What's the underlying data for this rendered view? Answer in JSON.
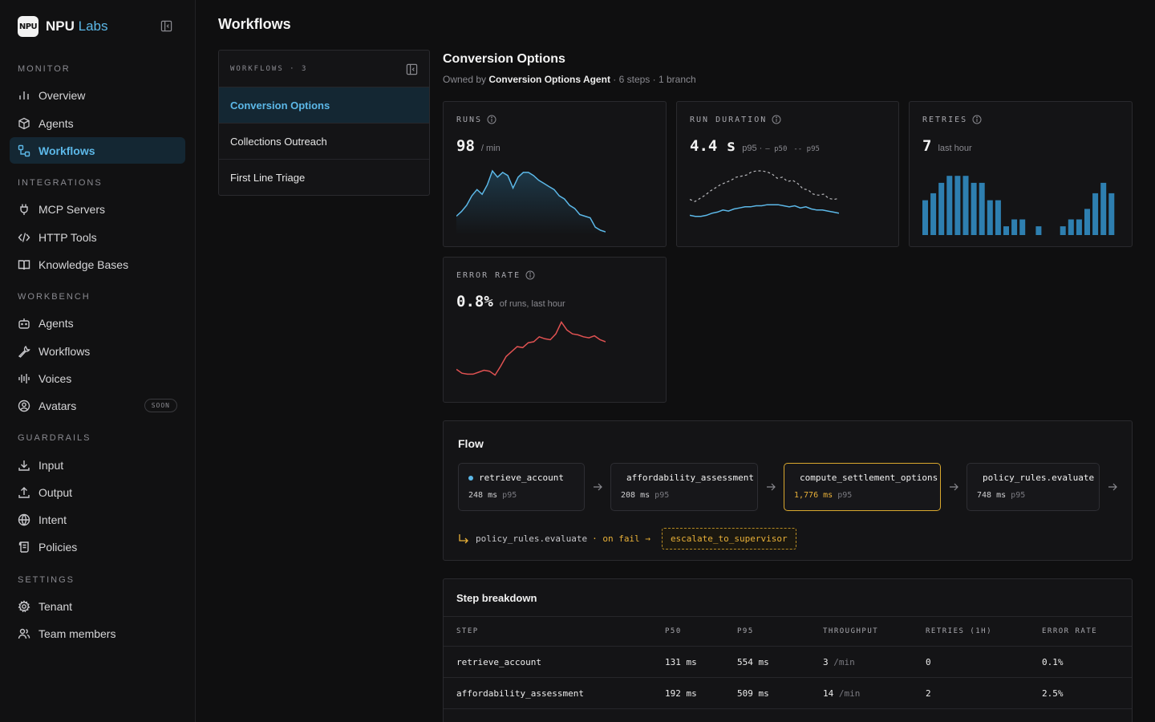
{
  "brand": {
    "logo_text": "NPU",
    "name": "NPU",
    "name_accent": "Labs"
  },
  "nav": {
    "monitor_label": "MONITOR",
    "monitor": [
      {
        "label": "Overview",
        "icon": "bar-chart-icon"
      },
      {
        "label": "Agents",
        "icon": "cube-icon"
      },
      {
        "label": "Workflows",
        "icon": "workflow-icon",
        "active": true
      }
    ],
    "integrations_label": "INTEGRATIONS",
    "integrations": [
      {
        "label": "MCP Servers",
        "icon": "plug-icon"
      },
      {
        "label": "HTTP Tools",
        "icon": "code-icon"
      },
      {
        "label": "Knowledge Bases",
        "icon": "book-icon"
      }
    ],
    "workbench_label": "WORKBENCH",
    "workbench": [
      {
        "label": "Agents",
        "icon": "robot-icon"
      },
      {
        "label": "Workflows",
        "icon": "wrench-icon"
      },
      {
        "label": "Voices",
        "icon": "waveform-icon"
      },
      {
        "label": "Avatars",
        "icon": "user-circle-icon",
        "badge": "SOON"
      }
    ],
    "guardrails_label": "GUARDRAILS",
    "guardrails": [
      {
        "label": "Input",
        "icon": "download-icon"
      },
      {
        "label": "Output",
        "icon": "upload-icon"
      },
      {
        "label": "Intent",
        "icon": "globe-icon"
      },
      {
        "label": "Policies",
        "icon": "scroll-icon"
      }
    ],
    "settings_label": "SETTINGS",
    "settings": [
      {
        "label": "Tenant",
        "icon": "gear-icon"
      },
      {
        "label": "Team members",
        "icon": "users-icon"
      }
    ]
  },
  "page": {
    "title": "Workflows"
  },
  "workflows": {
    "header": "WORKFLOWS · 3",
    "items": [
      "Conversion Options",
      "Collections Outreach",
      "First Line Triage"
    ]
  },
  "detail": {
    "title": "Conversion Options",
    "owned_prefix": "Owned by",
    "owner": "Conversion Options Agent",
    "meta": "· 6 steps · 1 branch"
  },
  "metrics": {
    "runs": {
      "label": "RUNS",
      "value": "98",
      "unit": "/ min"
    },
    "duration": {
      "label": "RUN DURATION",
      "value": "4.4 s",
      "unit": "p95 ·",
      "legend_p50": "p50",
      "legend_p95": "p95"
    },
    "retries": {
      "label": "RETRIES",
      "value": "7",
      "unit": "last hour"
    },
    "error_rate": {
      "label": "ERROR RATE",
      "value": "0.8%",
      "unit": "of runs, last hour"
    }
  },
  "chart_data": [
    {
      "type": "area",
      "title": "RUNS",
      "values": [
        10,
        13,
        17,
        23,
        27,
        24,
        30,
        39,
        35,
        38,
        36,
        28,
        35,
        38,
        38,
        36,
        33,
        31,
        29,
        27,
        23,
        21,
        17,
        15,
        11,
        10,
        9,
        3,
        1,
        0
      ]
    },
    {
      "type": "line",
      "title": "RUN DURATION",
      "series": [
        {
          "name": "p95",
          "values": [
            20,
            18,
            21,
            24,
            28,
            31,
            34,
            36,
            38,
            41,
            42,
            43,
            46,
            47,
            47,
            46,
            44,
            40,
            41,
            37,
            38,
            35,
            30,
            29,
            25,
            24,
            25,
            21,
            20,
            21
          ]
        },
        {
          "name": "p50",
          "values": [
            5,
            4,
            4,
            5,
            7,
            8,
            10,
            9,
            11,
            12,
            13,
            13,
            14,
            14,
            15,
            15,
            15,
            14,
            13,
            14,
            12,
            13,
            11,
            10,
            10,
            9,
            8,
            7
          ]
        }
      ]
    },
    {
      "type": "bar",
      "title": "RETRIES",
      "values": [
        40,
        48,
        60,
        68,
        68,
        68,
        60,
        60,
        40,
        40,
        10,
        18,
        18,
        0,
        10,
        0,
        0,
        10,
        18,
        18,
        30,
        48,
        60,
        48
      ]
    },
    {
      "type": "line",
      "title": "ERROR RATE",
      "values": [
        12,
        8,
        7,
        7,
        9,
        11,
        10,
        6,
        15,
        25,
        30,
        35,
        34,
        39,
        40,
        45,
        43,
        42,
        48,
        60,
        52,
        48,
        47,
        45,
        44,
        46,
        42,
        40
      ]
    }
  ],
  "flow": {
    "title": "Flow",
    "steps": [
      {
        "name": "retrieve_account",
        "latency": "248",
        "unit": "ms",
        "pct": "p95"
      },
      {
        "name": "affordability_assessment",
        "latency": "208",
        "unit": "ms",
        "pct": "p95"
      },
      {
        "name": "compute_settlement_options",
        "latency": "1,776",
        "unit": "ms",
        "pct": "p95"
      },
      {
        "name": "policy_rules.evaluate",
        "latency": "748",
        "unit": "ms",
        "pct": "p95"
      }
    ],
    "branch": {
      "from": "policy_rules.evaluate",
      "condition": "· on fail →",
      "to": "escalate_to_supervisor"
    }
  },
  "breakdown": {
    "title": "Step breakdown",
    "columns": [
      "STEP",
      "P50",
      "P95",
      "THROUGHPUT",
      "RETRIES (1H)",
      "ERROR RATE"
    ],
    "rows": [
      {
        "step": "retrieve_account",
        "p50": "131 ms",
        "p95": "554 ms",
        "throughput": "3",
        "throughput_unit": "/min",
        "retries": "0",
        "error_rate": "0.1%"
      },
      {
        "step": "affordability_assessment",
        "p50": "192 ms",
        "p95": "509 ms",
        "throughput": "14",
        "throughput_unit": "/min",
        "retries": "2",
        "error_rate": "2.5%"
      }
    ]
  },
  "colors": {
    "accent": "#5cb8e8",
    "warning": "#e8b038",
    "error": "#e05252",
    "bar": "#2e7fb0"
  }
}
